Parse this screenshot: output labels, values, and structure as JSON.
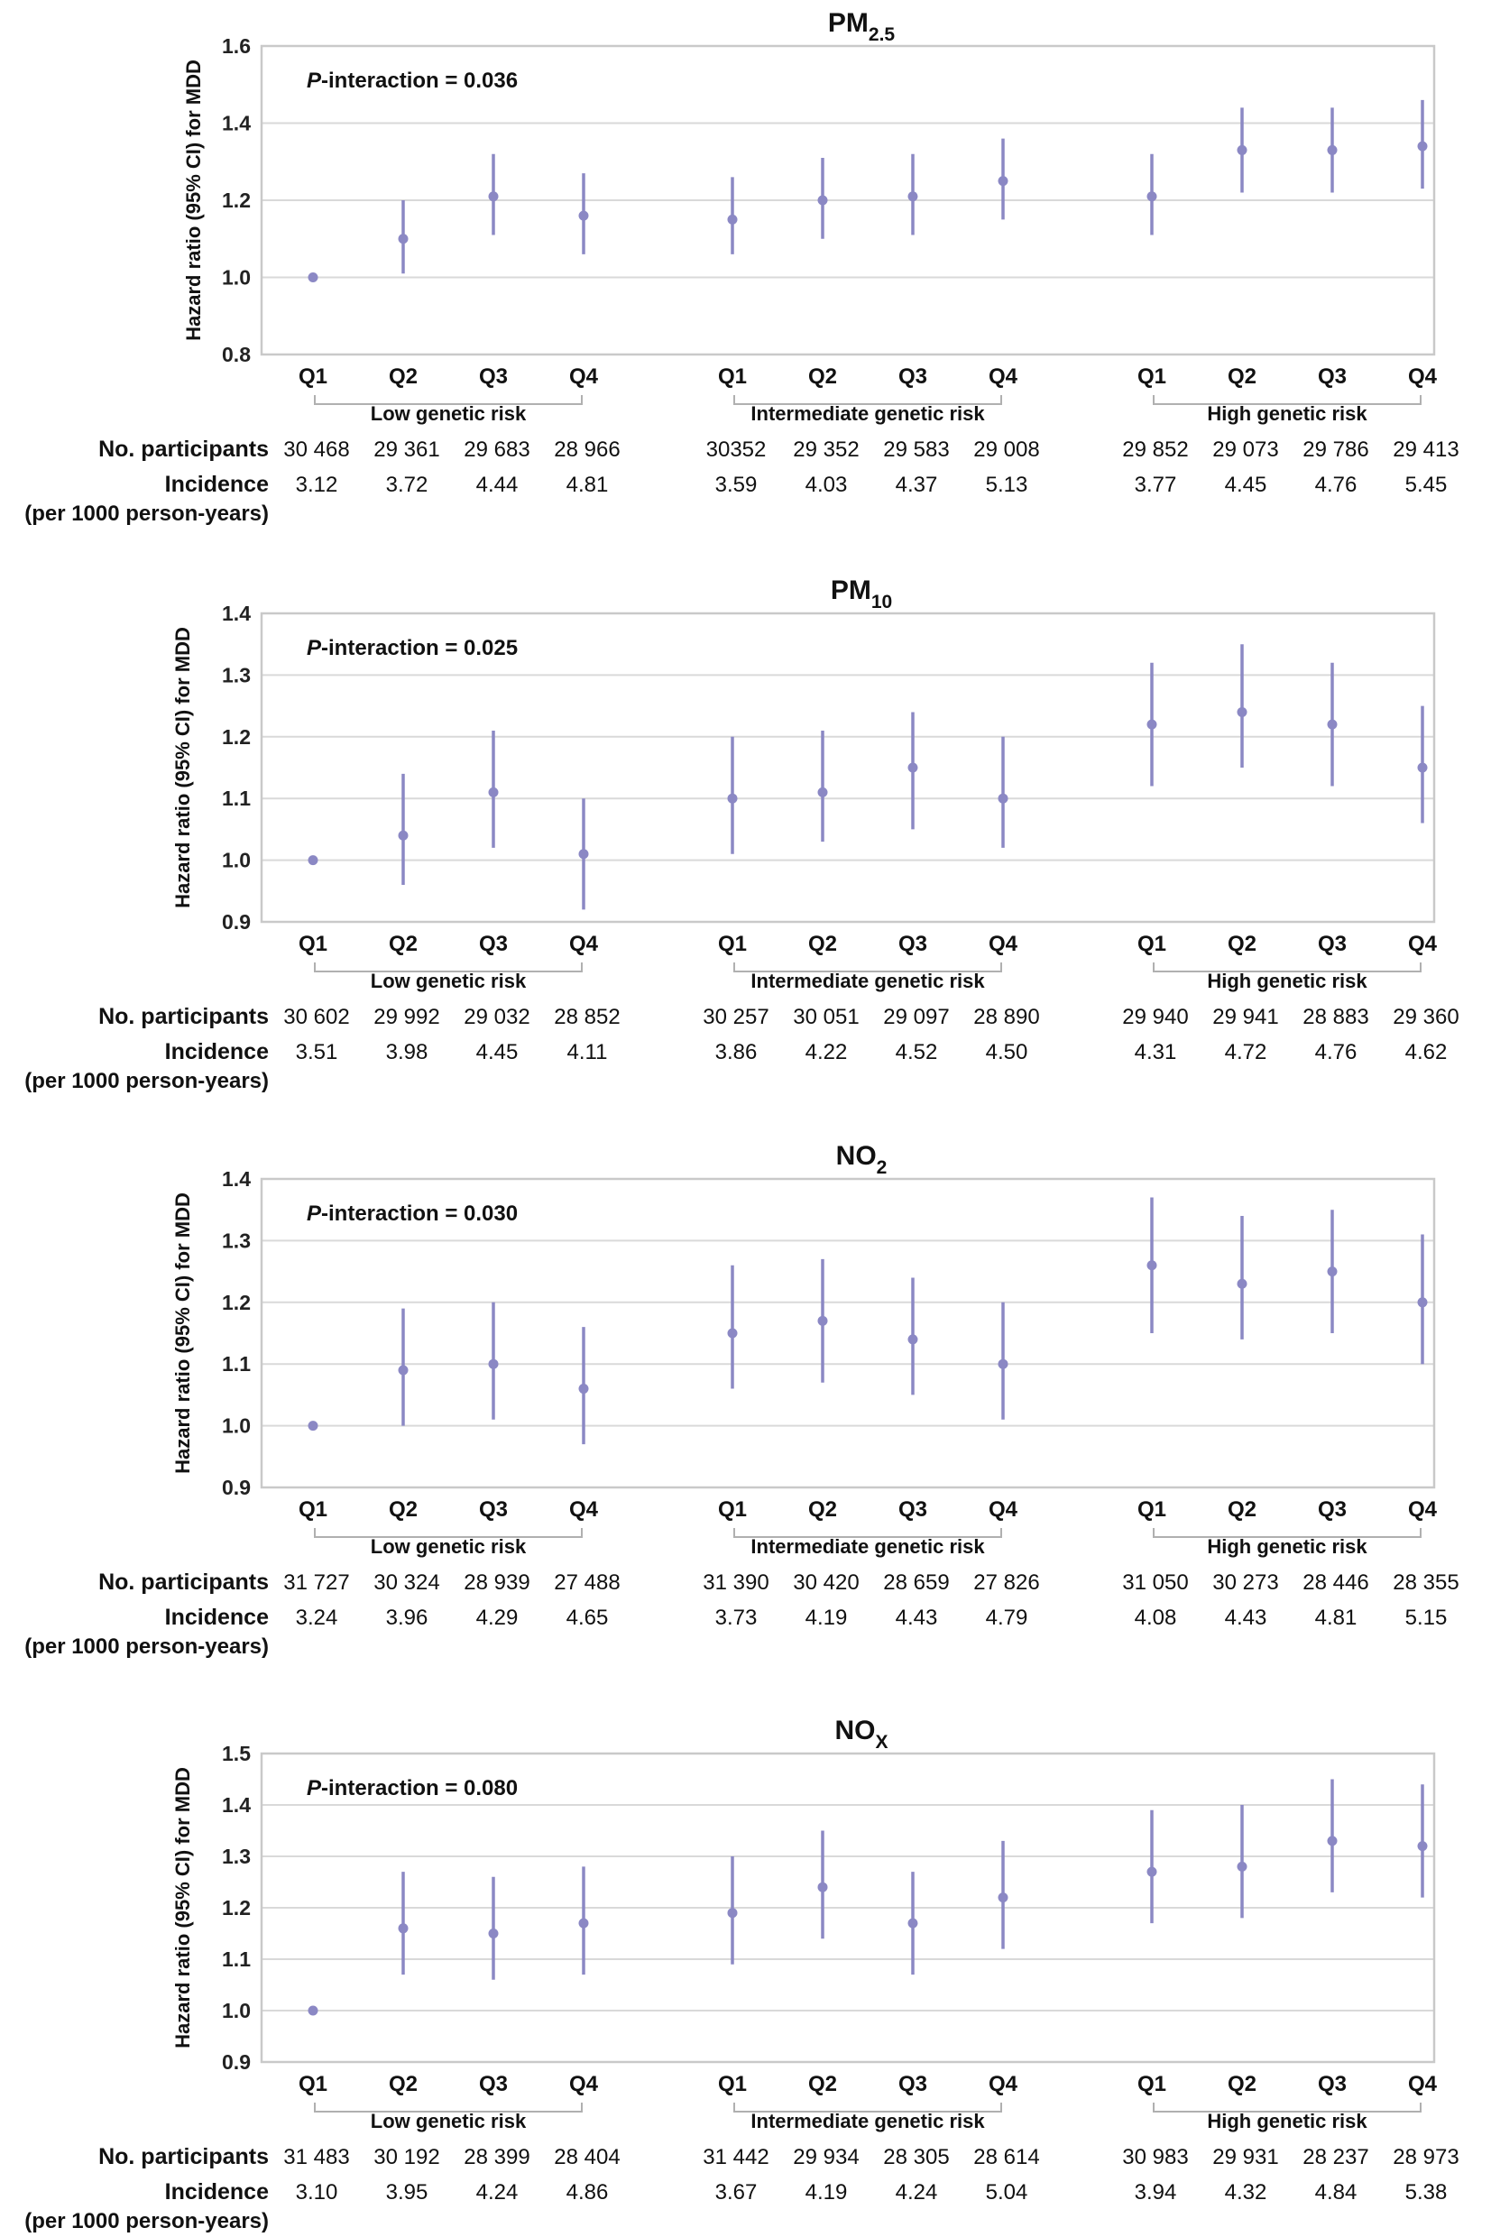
{
  "y_axis_label": "Hazard ratio (95% CI) for MDD",
  "row_labels": {
    "participants": "No. participants",
    "incidence": "Incidence",
    "incidence_unit": "(per 1000 person-years)"
  },
  "colors": {
    "point": "#8b88c4",
    "grid": "#d9d9d9",
    "frame": "#c9c9c9",
    "bracket": "#b0b0b0"
  },
  "chart_data": [
    {
      "type": "scatter",
      "title": "PM",
      "title_sub": "2.5",
      "annotation_italic": "P",
      "annotation_rest": "-interaction = 0.036",
      "ylabel": "Hazard ratio (95% CI) for MDD",
      "ylim": [
        0.8,
        1.6
      ],
      "yticks": [
        "0.8",
        "1.0",
        "1.2",
        "1.4",
        "1.6"
      ],
      "groups": [
        {
          "name": "Low genetic risk",
          "categories": [
            "Q1",
            "Q2",
            "Q3",
            "Q4"
          ],
          "hr": [
            1.0,
            1.1,
            1.21,
            1.16
          ],
          "lower": [
            1.0,
            1.01,
            1.11,
            1.06
          ],
          "upper": [
            1.0,
            1.2,
            1.32,
            1.27
          ],
          "participants": [
            "30 468",
            "29 361",
            "29 683",
            "28 966"
          ],
          "incidence": [
            "3.12",
            "3.72",
            "4.44",
            "4.81"
          ]
        },
        {
          "name": "Intermediate genetic risk",
          "categories": [
            "Q1",
            "Q2",
            "Q3",
            "Q4"
          ],
          "hr": [
            1.15,
            1.2,
            1.21,
            1.25
          ],
          "lower": [
            1.06,
            1.1,
            1.11,
            1.15
          ],
          "upper": [
            1.26,
            1.31,
            1.32,
            1.36
          ],
          "participants": [
            "30352",
            "29 352",
            "29 583",
            "29 008"
          ],
          "incidence": [
            "3.59",
            "4.03",
            "4.37",
            "5.13"
          ]
        },
        {
          "name": "High genetic risk",
          "categories": [
            "Q1",
            "Q2",
            "Q3",
            "Q4"
          ],
          "hr": [
            1.21,
            1.33,
            1.33,
            1.34
          ],
          "lower": [
            1.11,
            1.22,
            1.22,
            1.23
          ],
          "upper": [
            1.32,
            1.44,
            1.44,
            1.46
          ],
          "participants": [
            "29 852",
            "29 073",
            "29 786",
            "29 413"
          ],
          "incidence": [
            "3.77",
            "4.45",
            "4.76",
            "5.45"
          ]
        }
      ]
    },
    {
      "type": "scatter",
      "title": "PM",
      "title_sub": "10",
      "annotation_italic": "P",
      "annotation_rest": "-interaction = 0.025",
      "ylabel": "Hazard ratio (95% CI) for MDD",
      "ylim": [
        0.9,
        1.4
      ],
      "yticks": [
        "0.9",
        "1.0",
        "1.1",
        "1.2",
        "1.3",
        "1.4"
      ],
      "groups": [
        {
          "name": "Low genetic risk",
          "categories": [
            "Q1",
            "Q2",
            "Q3",
            "Q4"
          ],
          "hr": [
            1.0,
            1.04,
            1.11,
            1.01
          ],
          "lower": [
            1.0,
            0.96,
            1.02,
            0.92
          ],
          "upper": [
            1.0,
            1.14,
            1.21,
            1.1
          ],
          "participants": [
            "30 602",
            "29 992",
            "29 032",
            "28 852"
          ],
          "incidence": [
            "3.51",
            "3.98",
            "4.45",
            "4.11"
          ]
        },
        {
          "name": "Intermediate genetic risk",
          "categories": [
            "Q1",
            "Q2",
            "Q3",
            "Q4"
          ],
          "hr": [
            1.1,
            1.11,
            1.15,
            1.1
          ],
          "lower": [
            1.01,
            1.03,
            1.05,
            1.02
          ],
          "upper": [
            1.2,
            1.21,
            1.24,
            1.2
          ],
          "participants": [
            "30 257",
            "30 051",
            "29 097",
            "28 890"
          ],
          "incidence": [
            "3.86",
            "4.22",
            "4.52",
            "4.50"
          ]
        },
        {
          "name": "High genetic risk",
          "categories": [
            "Q1",
            "Q2",
            "Q3",
            "Q4"
          ],
          "hr": [
            1.22,
            1.24,
            1.22,
            1.15
          ],
          "lower": [
            1.12,
            1.15,
            1.12,
            1.06
          ],
          "upper": [
            1.32,
            1.35,
            1.32,
            1.25
          ],
          "participants": [
            "29 940",
            "29 941",
            "28 883",
            "29 360"
          ],
          "incidence": [
            "4.31",
            "4.72",
            "4.76",
            "4.62"
          ]
        }
      ]
    },
    {
      "type": "scatter",
      "title": "NO",
      "title_sub": "2",
      "annotation_italic": "P",
      "annotation_rest": "-interaction = 0.030",
      "ylabel": "Hazard ratio (95% CI) for MDD",
      "ylim": [
        0.9,
        1.4
      ],
      "yticks": [
        "0.9",
        "1.0",
        "1.1",
        "1.2",
        "1.3",
        "1.4"
      ],
      "groups": [
        {
          "name": "Low genetic risk",
          "categories": [
            "Q1",
            "Q2",
            "Q3",
            "Q4"
          ],
          "hr": [
            1.0,
            1.09,
            1.1,
            1.06
          ],
          "lower": [
            1.0,
            1.0,
            1.01,
            0.97
          ],
          "upper": [
            1.0,
            1.19,
            1.2,
            1.16
          ],
          "participants": [
            "31 727",
            "30 324",
            "28 939",
            "27 488"
          ],
          "incidence": [
            "3.24",
            "3.96",
            "4.29",
            "4.65"
          ]
        },
        {
          "name": "Intermediate genetic risk",
          "categories": [
            "Q1",
            "Q2",
            "Q3",
            "Q4"
          ],
          "hr": [
            1.15,
            1.17,
            1.14,
            1.1
          ],
          "lower": [
            1.06,
            1.07,
            1.05,
            1.01
          ],
          "upper": [
            1.26,
            1.27,
            1.24,
            1.2
          ],
          "participants": [
            "31 390",
            "30 420",
            "28 659",
            "27 826"
          ],
          "incidence": [
            "3.73",
            "4.19",
            "4.43",
            "4.79"
          ]
        },
        {
          "name": "High genetic risk",
          "categories": [
            "Q1",
            "Q2",
            "Q3",
            "Q4"
          ],
          "hr": [
            1.26,
            1.23,
            1.25,
            1.2
          ],
          "lower": [
            1.15,
            1.14,
            1.15,
            1.1
          ],
          "upper": [
            1.37,
            1.34,
            1.35,
            1.31
          ],
          "participants": [
            "31 050",
            "30 273",
            "28 446",
            "28 355"
          ],
          "incidence": [
            "4.08",
            "4.43",
            "4.81",
            "5.15"
          ]
        }
      ]
    },
    {
      "type": "scatter",
      "title": "NO",
      "title_sub": "X",
      "annotation_italic": "P",
      "annotation_rest": "-interaction = 0.080",
      "ylabel": "Hazard ratio (95% CI) for MDD",
      "ylim": [
        0.9,
        1.5
      ],
      "yticks": [
        "0.9",
        "1.0",
        "1.1",
        "1.2",
        "1.3",
        "1.4",
        "1.5"
      ],
      "groups": [
        {
          "name": "Low genetic risk",
          "categories": [
            "Q1",
            "Q2",
            "Q3",
            "Q4"
          ],
          "hr": [
            1.0,
            1.16,
            1.15,
            1.17
          ],
          "lower": [
            1.0,
            1.07,
            1.06,
            1.07
          ],
          "upper": [
            1.0,
            1.27,
            1.26,
            1.28
          ],
          "participants": [
            "31 483",
            "30 192",
            "28 399",
            "28 404"
          ],
          "incidence": [
            "3.10",
            "3.95",
            "4.24",
            "4.86"
          ]
        },
        {
          "name": "Intermediate genetic risk",
          "categories": [
            "Q1",
            "Q2",
            "Q3",
            "Q4"
          ],
          "hr": [
            1.19,
            1.24,
            1.17,
            1.22
          ],
          "lower": [
            1.09,
            1.14,
            1.07,
            1.12
          ],
          "upper": [
            1.3,
            1.35,
            1.27,
            1.33
          ],
          "participants": [
            "31 442",
            "29 934",
            "28 305",
            "28 614"
          ],
          "incidence": [
            "3.67",
            "4.19",
            "4.24",
            "5.04"
          ]
        },
        {
          "name": "High genetic risk",
          "categories": [
            "Q1",
            "Q2",
            "Q3",
            "Q4"
          ],
          "hr": [
            1.27,
            1.28,
            1.33,
            1.32
          ],
          "lower": [
            1.17,
            1.18,
            1.23,
            1.22
          ],
          "upper": [
            1.39,
            1.4,
            1.45,
            1.44
          ],
          "participants": [
            "30 983",
            "29 931",
            "28 237",
            "28 973"
          ],
          "incidence": [
            "3.94",
            "4.32",
            "4.84",
            "5.38"
          ]
        }
      ]
    }
  ]
}
